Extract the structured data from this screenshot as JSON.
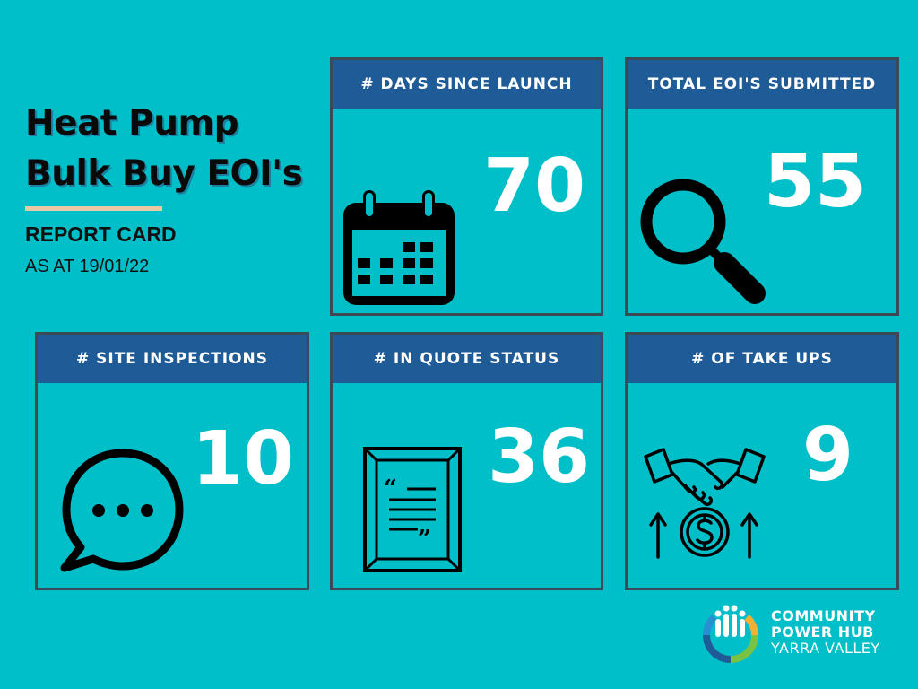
{
  "heading": {
    "line1": "Heat Pump",
    "line2": "Bulk Buy EOI's",
    "subtitle": "REPORT CARD",
    "as_at": "AS AT 19/01/22"
  },
  "cards": [
    {
      "label": "# DAYS SINCE LAUNCH",
      "value": "70",
      "icon": "calendar-icon"
    },
    {
      "label": "TOTAL EOI'S SUBMITTED",
      "value": "55",
      "icon": "magnifier-icon"
    },
    {
      "label": "# SITE INSPECTIONS",
      "value": "10",
      "icon": "chat-bubble-icon"
    },
    {
      "label": "# IN QUOTE STATUS",
      "value": "36",
      "icon": "quote-document-icon"
    },
    {
      "label": "# OF TAKE UPS",
      "value": "9",
      "icon": "handshake-money-icon"
    }
  ],
  "logo": {
    "line1": "COMMUNITY",
    "line2": "POWER HUB",
    "line3": "YARRA VALLEY"
  },
  "colors": {
    "background": "#00bfc9",
    "header": "#1e5b97",
    "border": "#3c4a56",
    "accent_rule": "#e8c9a4"
  }
}
